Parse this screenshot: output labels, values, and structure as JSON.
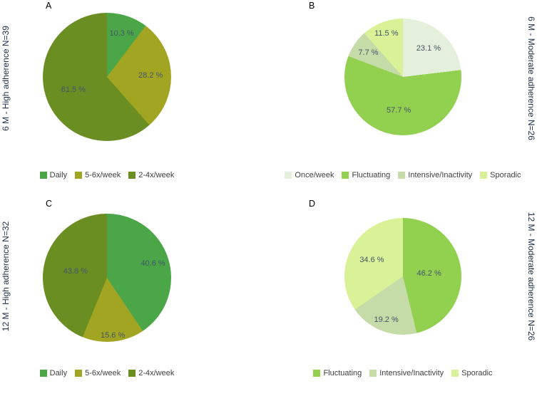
{
  "palette": {
    "background": "#ffffff",
    "percent_label_text": "#44546A",
    "side_label_text": "#1F2D45",
    "panel_letter_text": "#000000",
    "legend_text": "#404040"
  },
  "chart_data": [
    {
      "type": "pie",
      "panel": "A",
      "title": "6 M - High adherence N=39",
      "title_side": "left",
      "legend_position": "bottom",
      "labels": [
        "Daily",
        "5-6x/week",
        "2-4x/week"
      ],
      "values": [
        10.3,
        28.2,
        61.5
      ],
      "unit": "%",
      "colors": [
        "#4BA647",
        "#A2A521",
        "#6B8E23"
      ],
      "label_r": [
        0.72,
        0.68,
        0.56
      ]
    },
    {
      "type": "pie",
      "panel": "B",
      "title": "6 M - Moderate adherence N=26",
      "title_side": "right",
      "legend_position": "bottom",
      "labels": [
        "Once/week",
        "Fluctuating",
        "Intensive/Inactivity",
        "Sporadic"
      ],
      "values": [
        23.1,
        57.7,
        7.7,
        11.5
      ],
      "unit": "%",
      "colors": [
        "#E4EFDC",
        "#92D050",
        "#C5DCA8",
        "#D9F298"
      ],
      "label_r": [
        0.66,
        0.58,
        0.72,
        0.8
      ]
    },
    {
      "type": "pie",
      "panel": "C",
      "title": "12 M - High adherence N=32",
      "title_side": "left",
      "legend_position": "bottom",
      "labels": [
        "Daily",
        "5-6x/week",
        "2-4x/week"
      ],
      "values": [
        40.6,
        15.6,
        43.8
      ],
      "unit": "%",
      "colors": [
        "#4BA647",
        "#A2A521",
        "#6B8E23"
      ],
      "label_r": [
        0.75,
        0.9,
        0.5
      ]
    },
    {
      "type": "pie",
      "panel": "D",
      "title": "12 M - Moderate adherence N=26",
      "title_side": "right",
      "legend_position": "bottom",
      "labels": [
        "Fluctuating",
        "Intensive/Inactivity",
        "Sporadic"
      ],
      "values": [
        46.2,
        19.2,
        34.6
      ],
      "unit": "%",
      "colors": [
        "#92D050",
        "#C5DCA8",
        "#D9F298"
      ],
      "label_r": [
        0.45,
        0.8,
        0.6
      ]
    }
  ]
}
